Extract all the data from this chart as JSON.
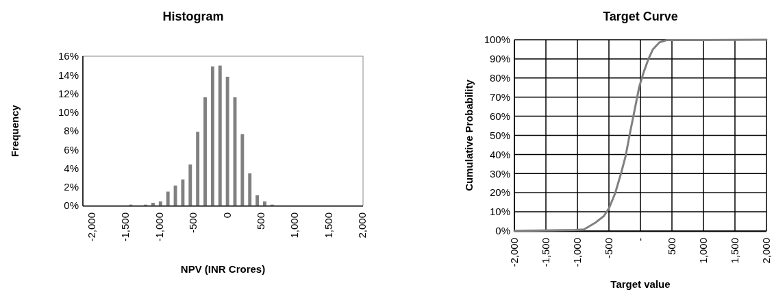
{
  "chart_data": [
    {
      "type": "histogram",
      "title": "Histogram",
      "xlabel": "NPV (INR Crores)",
      "ylabel": "Frequency",
      "color": "#808080",
      "bins": [
        -1478,
        -1368,
        -1258,
        -1148,
        -1038,
        -928,
        -818,
        -708,
        -598,
        -488,
        -378,
        -268,
        -158,
        -48,
        62,
        172,
        282,
        392,
        502,
        612,
        722
      ],
      "values": [
        0.1,
        0,
        0.1,
        0.3,
        0.45,
        1.5,
        2.15,
        2.8,
        4.4,
        7.9,
        11.6,
        14.9,
        15.0,
        13.8,
        11.6,
        7.65,
        3.45,
        1.1,
        0.45,
        0.1
      ],
      "xlim": [
        -2130,
        2010
      ],
      "xticks": [
        {
          "value": -2000,
          "label": "-2,000"
        },
        {
          "value": -1500,
          "label": "-1,500"
        },
        {
          "value": -1000,
          "label": "-1,000"
        },
        {
          "value": -500,
          "label": "-500"
        },
        {
          "value": 0,
          "label": "0"
        },
        {
          "value": 500,
          "label": "500"
        },
        {
          "value": 1000,
          "label": "1,000"
        },
        {
          "value": 1500,
          "label": "1,500"
        },
        {
          "value": 2000,
          "label": "2,000"
        }
      ],
      "ylim": [
        0,
        16
      ],
      "yticks": [
        {
          "value": 0,
          "label": "0%"
        },
        {
          "value": 2,
          "label": "2%"
        },
        {
          "value": 4,
          "label": "4%"
        },
        {
          "value": 6,
          "label": "6%"
        },
        {
          "value": 8,
          "label": "8%"
        },
        {
          "value": 10,
          "label": "10%"
        },
        {
          "value": 12,
          "label": "12%"
        },
        {
          "value": 14,
          "label": "14%"
        },
        {
          "value": 16,
          "label": "16%"
        }
      ],
      "grid": false
    },
    {
      "type": "line",
      "title": "Target Curve",
      "xlabel": "Target value",
      "ylabel": "Cumulative Probability",
      "grid": true,
      "series": [
        {
          "color": "#808080",
          "x": [
            -2000,
            -1033,
            -895,
            -707,
            -580,
            -497,
            -400,
            -309,
            -236,
            -164,
            -91,
            -19,
            53,
            126,
            198,
            300,
            416,
            2000
          ],
          "values": [
            0,
            0.5,
            0.8,
            4.5,
            7.8,
            12,
            19.8,
            30,
            39,
            51.5,
            63.5,
            75.4,
            83.2,
            89.8,
            95,
            98.6,
            99.8,
            100
          ]
        }
      ],
      "xlim": [
        -2000,
        2000
      ],
      "xticks": [
        {
          "value": -2000,
          "label": "-2,000"
        },
        {
          "value": -1500,
          "label": "-1,500"
        },
        {
          "value": -1000,
          "label": "-1,000"
        },
        {
          "value": -500,
          "label": "-500"
        },
        {
          "value": 0,
          "label": "-"
        },
        {
          "value": 500,
          "label": "500"
        },
        {
          "value": 1000,
          "label": "1,000"
        },
        {
          "value": 1500,
          "label": "1,500"
        },
        {
          "value": 2000,
          "label": "2,000"
        }
      ],
      "ylim": [
        0,
        100
      ],
      "yticks": [
        {
          "value": 0,
          "label": "0%"
        },
        {
          "value": 10,
          "label": "10%"
        },
        {
          "value": 20,
          "label": "20%"
        },
        {
          "value": 30,
          "label": "30%"
        },
        {
          "value": 40,
          "label": "40%"
        },
        {
          "value": 50,
          "label": "50%"
        },
        {
          "value": 60,
          "label": "60%"
        },
        {
          "value": 70,
          "label": "70%"
        },
        {
          "value": 80,
          "label": "80%"
        },
        {
          "value": 90,
          "label": "90%"
        },
        {
          "value": 100,
          "label": "100%"
        }
      ]
    }
  ]
}
